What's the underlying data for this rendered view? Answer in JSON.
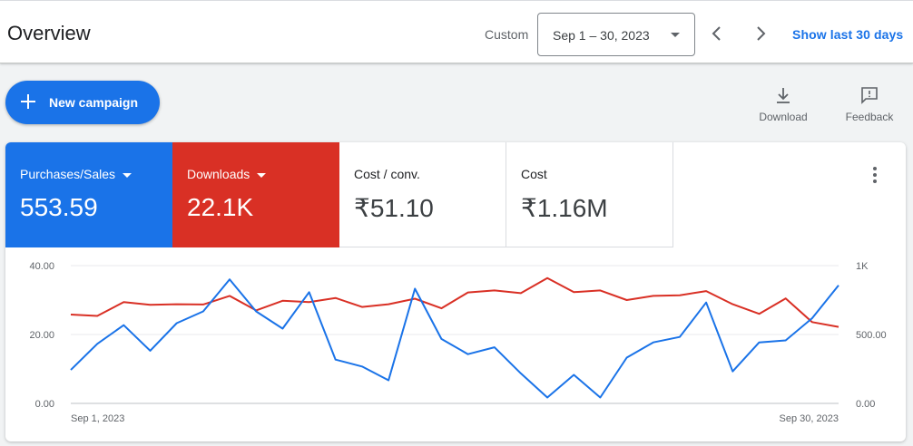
{
  "header": {
    "title": "Overview",
    "custom_label": "Custom",
    "date_range": "Sep 1 – 30, 2023",
    "show_last": "Show last 30 days",
    "prev_icon": "chevron-left-icon",
    "next_icon": "chevron-right-icon"
  },
  "toolbar": {
    "new_campaign": "New campaign",
    "download": "Download",
    "feedback": "Feedback"
  },
  "metrics": [
    {
      "name": "Purchases/Sales",
      "value": "553.59",
      "color": "#1a73e8",
      "has_dropdown": true
    },
    {
      "name": "Downloads",
      "value": "22.1K",
      "color": "#d93025",
      "has_dropdown": true
    },
    {
      "name": "Cost / conv.",
      "value": "₹51.10",
      "has_dropdown": false
    },
    {
      "name": "Cost",
      "value": "₹1.16M",
      "has_dropdown": false
    }
  ],
  "colors": {
    "accent": "#1a73e8",
    "red": "#d93025"
  },
  "chart_data": {
    "type": "line",
    "x": [
      "Sep 1",
      "Sep 2",
      "Sep 3",
      "Sep 4",
      "Sep 5",
      "Sep 6",
      "Sep 7",
      "Sep 8",
      "Sep 9",
      "Sep 10",
      "Sep 11",
      "Sep 12",
      "Sep 13",
      "Sep 14",
      "Sep 15",
      "Sep 16",
      "Sep 17",
      "Sep 18",
      "Sep 19",
      "Sep 20",
      "Sep 21",
      "Sep 22",
      "Sep 23",
      "Sep 24",
      "Sep 25",
      "Sep 26",
      "Sep 27",
      "Sep 28",
      "Sep 29",
      "Sep 30"
    ],
    "x_tick_labels": {
      "first": "Sep 1, 2023",
      "last": "Sep 30, 2023"
    },
    "y_left": {
      "ticks": [
        "0.00",
        "20.00",
        "40.00"
      ],
      "range": [
        0,
        40
      ]
    },
    "y_right": {
      "ticks": [
        "0.00",
        "500.00",
        "1K"
      ],
      "range": [
        0,
        1000
      ]
    },
    "series": [
      {
        "axis": "left",
        "color": "#1a73e8",
        "values": [
          9.7,
          17.3,
          22.7,
          15.3,
          23.3,
          26.7,
          36,
          26.7,
          21.7,
          32.3,
          12.7,
          10.7,
          6.7,
          33.3,
          18.7,
          14.3,
          16.3,
          8.7,
          1.7,
          8.3,
          1.7,
          13.3,
          17.7,
          19.3,
          29.3,
          9.3,
          17.7,
          18.3,
          24.7,
          34.3
        ]
      },
      {
        "axis": "right",
        "color": "#d93025",
        "values": [
          645,
          635,
          735,
          715,
          720,
          718,
          780,
          675,
          745,
          735,
          765,
          700,
          720,
          760,
          690,
          805,
          820,
          800,
          910,
          807,
          820,
          750,
          780,
          785,
          815,
          720,
          650,
          762,
          590,
          555
        ]
      }
    ],
    "grid": true,
    "legend": "none"
  }
}
